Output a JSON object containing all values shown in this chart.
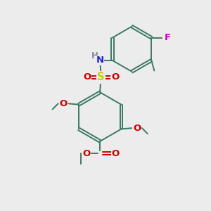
{
  "background_color": "#ececec",
  "bond_color": "#3a7a65",
  "bond_lw": 1.4,
  "S_color": "#cccc00",
  "O_color": "#cc0000",
  "N_color": "#2222cc",
  "F_color": "#bb00bb",
  "H_color": "#888899",
  "text_fontsize": 9.5,
  "xlim": [
    0,
    10
  ],
  "ylim": [
    0,
    11
  ]
}
